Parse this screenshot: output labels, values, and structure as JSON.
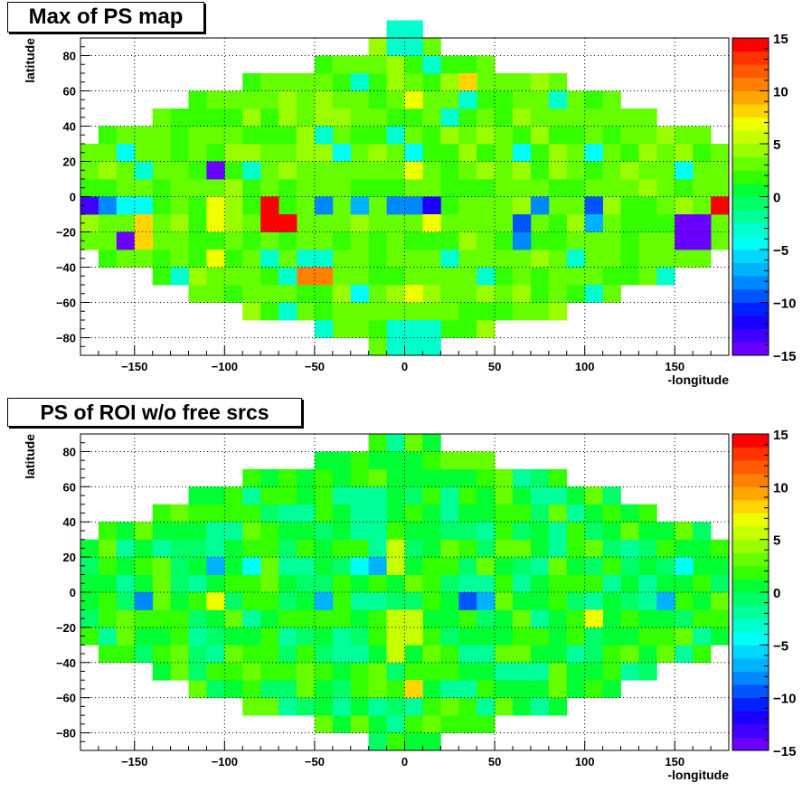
{
  "chart_data": [
    {
      "type": "heatmap",
      "title": "Max of PS map",
      "xlabel": "-longitude",
      "ylabel": "latitude",
      "xlim": [
        -180,
        180
      ],
      "ylim": [
        -90,
        90
      ],
      "zlim": [
        -15,
        15
      ],
      "xticks": [
        -150,
        -100,
        -50,
        0,
        50,
        100,
        150
      ],
      "yticks": [
        -80,
        -60,
        -40,
        -20,
        0,
        20,
        40,
        60,
        80
      ],
      "zticks": [
        -15,
        -10,
        -5,
        0,
        5,
        10,
        15
      ],
      "grid": true,
      "cells": [
        {
          "x0": -10,
          "x1": 10,
          "y0": 80,
          "y1": 100,
          "z": -3
        },
        {
          "x0": 10,
          "x1": 20,
          "y0": 70,
          "y1": 80,
          "z": -3
        },
        {
          "x0": -30,
          "x1": -20,
          "y0": 60,
          "y1": 70,
          "z": -3
        },
        {
          "x0": 30,
          "x1": 40,
          "y0": 60,
          "y1": 70,
          "z": 8
        },
        {
          "x0": 0,
          "x1": 10,
          "y0": 50,
          "y1": 60,
          "z": 7
        },
        {
          "x0": 30,
          "x1": 40,
          "y0": 50,
          "y1": 60,
          "z": -3
        },
        {
          "x0": 20,
          "x1": 30,
          "y0": 40,
          "y1": 50,
          "z": -3
        },
        {
          "x0": 80,
          "x1": 90,
          "y0": 50,
          "y1": 60,
          "z": -3
        },
        {
          "x0": -50,
          "x1": -40,
          "y0": 30,
          "y1": 40,
          "z": -3
        },
        {
          "x0": -10,
          "x1": 0,
          "y0": 30,
          "y1": 40,
          "z": -3
        },
        {
          "x0": -40,
          "x1": -30,
          "y0": 20,
          "y1": 30,
          "z": -5
        },
        {
          "x0": 0,
          "x1": 10,
          "y0": 20,
          "y1": 30,
          "z": -5
        },
        {
          "x0": 60,
          "x1": 70,
          "y0": 20,
          "y1": 30,
          "z": -5
        },
        {
          "x0": 100,
          "x1": 110,
          "y0": 20,
          "y1": 30,
          "z": -5
        },
        {
          "x0": -160,
          "x1": -150,
          "y0": 20,
          "y1": 30,
          "z": -5
        },
        {
          "x0": -110,
          "x1": -100,
          "y0": 10,
          "y1": 20,
          "z": -15
        },
        {
          "x0": -150,
          "x1": -140,
          "y0": 10,
          "y1": 20,
          "z": -3
        },
        {
          "x0": -90,
          "x1": -80,
          "y0": 10,
          "y1": 20,
          "z": -3
        },
        {
          "x0": 0,
          "x1": 10,
          "y0": 10,
          "y1": 20,
          "z": 7
        },
        {
          "x0": 150,
          "x1": 160,
          "y0": 10,
          "y1": 20,
          "z": -5
        },
        {
          "x0": -180,
          "x1": -170,
          "y0": -10,
          "y1": 0,
          "z": -13
        },
        {
          "x0": -170,
          "x1": -160,
          "y0": -10,
          "y1": 0,
          "z": -8
        },
        {
          "x0": -160,
          "x1": -140,
          "y0": -10,
          "y1": 0,
          "z": -5
        },
        {
          "x0": -110,
          "x1": -100,
          "y0": -10,
          "y1": 0,
          "z": 7
        },
        {
          "x0": -80,
          "x1": -70,
          "y0": -10,
          "y1": 0,
          "z": 15
        },
        {
          "x0": -50,
          "x1": -40,
          "y0": -10,
          "y1": 0,
          "z": -8
        },
        {
          "x0": -30,
          "x1": -20,
          "y0": -10,
          "y1": 0,
          "z": -7
        },
        {
          "x0": -10,
          "x1": 10,
          "y0": -10,
          "y1": 0,
          "z": -8
        },
        {
          "x0": 10,
          "x1": 20,
          "y0": -10,
          "y1": 0,
          "z": -12
        },
        {
          "x0": 70,
          "x1": 80,
          "y0": -10,
          "y1": 0,
          "z": -8
        },
        {
          "x0": 100,
          "x1": 110,
          "y0": -10,
          "y1": 0,
          "z": -9
        },
        {
          "x0": 170,
          "x1": 180,
          "y0": -10,
          "y1": 0,
          "z": 15
        },
        {
          "x0": -80,
          "x1": -60,
          "y0": -20,
          "y1": -10,
          "z": 15
        },
        {
          "x0": -150,
          "x1": -140,
          "y0": -20,
          "y1": -10,
          "z": 8
        },
        {
          "x0": -110,
          "x1": -100,
          "y0": -20,
          "y1": -10,
          "z": 7
        },
        {
          "x0": 10,
          "x1": 20,
          "y0": -20,
          "y1": -10,
          "z": 7
        },
        {
          "x0": 60,
          "x1": 70,
          "y0": -20,
          "y1": -10,
          "z": -10
        },
        {
          "x0": 100,
          "x1": 110,
          "y0": -20,
          "y1": -10,
          "z": -7
        },
        {
          "x0": 150,
          "x1": 170,
          "y0": -30,
          "y1": -10,
          "z": -15
        },
        {
          "x0": -160,
          "x1": -150,
          "y0": -30,
          "y1": -20,
          "z": -14
        },
        {
          "x0": -150,
          "x1": -140,
          "y0": -30,
          "y1": -20,
          "z": 8
        },
        {
          "x0": 60,
          "x1": 70,
          "y0": -30,
          "y1": -20,
          "z": -8
        },
        {
          "x0": -110,
          "x1": -100,
          "y0": -40,
          "y1": -30,
          "z": 7
        },
        {
          "x0": -80,
          "x1": -70,
          "y0": -40,
          "y1": -30,
          "z": -3
        },
        {
          "x0": -60,
          "x1": -40,
          "y0": -40,
          "y1": -30,
          "z": -3
        },
        {
          "x0": 20,
          "x1": 30,
          "y0": -40,
          "y1": -30,
          "z": -3
        },
        {
          "x0": 90,
          "x1": 100,
          "y0": -40,
          "y1": -30,
          "z": -3
        },
        {
          "x0": -60,
          "x1": -40,
          "y0": -50,
          "y1": -40,
          "z": 11
        },
        {
          "x0": -70,
          "x1": -60,
          "y0": -50,
          "y1": -40,
          "z": -3
        },
        {
          "x0": -130,
          "x1": -120,
          "y0": -50,
          "y1": -40,
          "z": -3
        },
        {
          "x0": 140,
          "x1": 150,
          "y0": -50,
          "y1": -40,
          "z": -3
        },
        {
          "x0": 40,
          "x1": 50,
          "y0": -50,
          "y1": -40,
          "z": -3
        },
        {
          "x0": -30,
          "x1": -20,
          "y0": -60,
          "y1": -50,
          "z": -5
        },
        {
          "x0": 0,
          "x1": 10,
          "y0": -60,
          "y1": -50,
          "z": 7
        },
        {
          "x0": 100,
          "x1": 110,
          "y0": -60,
          "y1": -50,
          "z": -3
        },
        {
          "x0": -70,
          "x1": -60,
          "y0": -70,
          "y1": -60,
          "z": -3
        },
        {
          "x0": -50,
          "x1": -40,
          "y0": -80,
          "y1": -70,
          "z": -3
        },
        {
          "x0": -10,
          "x1": 20,
          "y0": -80,
          "y1": -70,
          "z": -3
        },
        {
          "x0": -10,
          "x1": 20,
          "y0": -90,
          "y1": -80,
          "z": -3
        }
      ]
    },
    {
      "type": "heatmap",
      "title": "PS of ROI w/o free srcs",
      "xlabel": "-longitude",
      "ylabel": "latitude",
      "xlim": [
        -180,
        180
      ],
      "ylim": [
        -90,
        90
      ],
      "zlim": [
        -15,
        15
      ],
      "xticks": [
        -150,
        -100,
        -50,
        0,
        50,
        100,
        150
      ],
      "yticks": [
        -80,
        -60,
        -40,
        -20,
        0,
        20,
        40,
        60,
        80
      ],
      "zticks": [
        -15,
        -10,
        -5,
        0,
        5,
        10,
        15
      ],
      "grid": true,
      "cells": [
        {
          "x0": -110,
          "x1": -100,
          "y0": 10,
          "y1": 20,
          "z": -7
        },
        {
          "x0": -90,
          "x1": -80,
          "y0": 10,
          "y1": 20,
          "z": -5
        },
        {
          "x0": -30,
          "x1": -20,
          "y0": 10,
          "y1": 20,
          "z": -5
        },
        {
          "x0": -20,
          "x1": -10,
          "y0": 10,
          "y1": 20,
          "z": -7
        },
        {
          "x0": -10,
          "x1": 0,
          "y0": 10,
          "y1": 30,
          "z": 6
        },
        {
          "x0": 150,
          "x1": 160,
          "y0": 10,
          "y1": 20,
          "z": -5
        },
        {
          "x0": -150,
          "x1": -140,
          "y0": -10,
          "y1": 0,
          "z": -8
        },
        {
          "x0": -110,
          "x1": -100,
          "y0": -10,
          "y1": 0,
          "z": 7
        },
        {
          "x0": -50,
          "x1": -40,
          "y0": -10,
          "y1": 0,
          "z": -7
        },
        {
          "x0": 30,
          "x1": 40,
          "y0": -10,
          "y1": 0,
          "z": -9
        },
        {
          "x0": 40,
          "x1": 50,
          "y0": -10,
          "y1": 0,
          "z": -7
        },
        {
          "x0": 140,
          "x1": 150,
          "y0": -10,
          "y1": 0,
          "z": -7
        },
        {
          "x0": -10,
          "x1": 0,
          "y0": -20,
          "y1": -10,
          "z": 5
        },
        {
          "x0": 0,
          "x1": 10,
          "y0": -30,
          "y1": -10,
          "z": 6
        },
        {
          "x0": 100,
          "x1": 110,
          "y0": -20,
          "y1": -10,
          "z": 7
        },
        {
          "x0": -10,
          "x1": 0,
          "y0": -30,
          "y1": -20,
          "z": 6
        },
        {
          "x0": -10,
          "x1": 0,
          "y0": -40,
          "y1": -30,
          "z": 6
        },
        {
          "x0": 0,
          "x1": 10,
          "y0": -60,
          "y1": -50,
          "z": 8
        }
      ]
    }
  ]
}
